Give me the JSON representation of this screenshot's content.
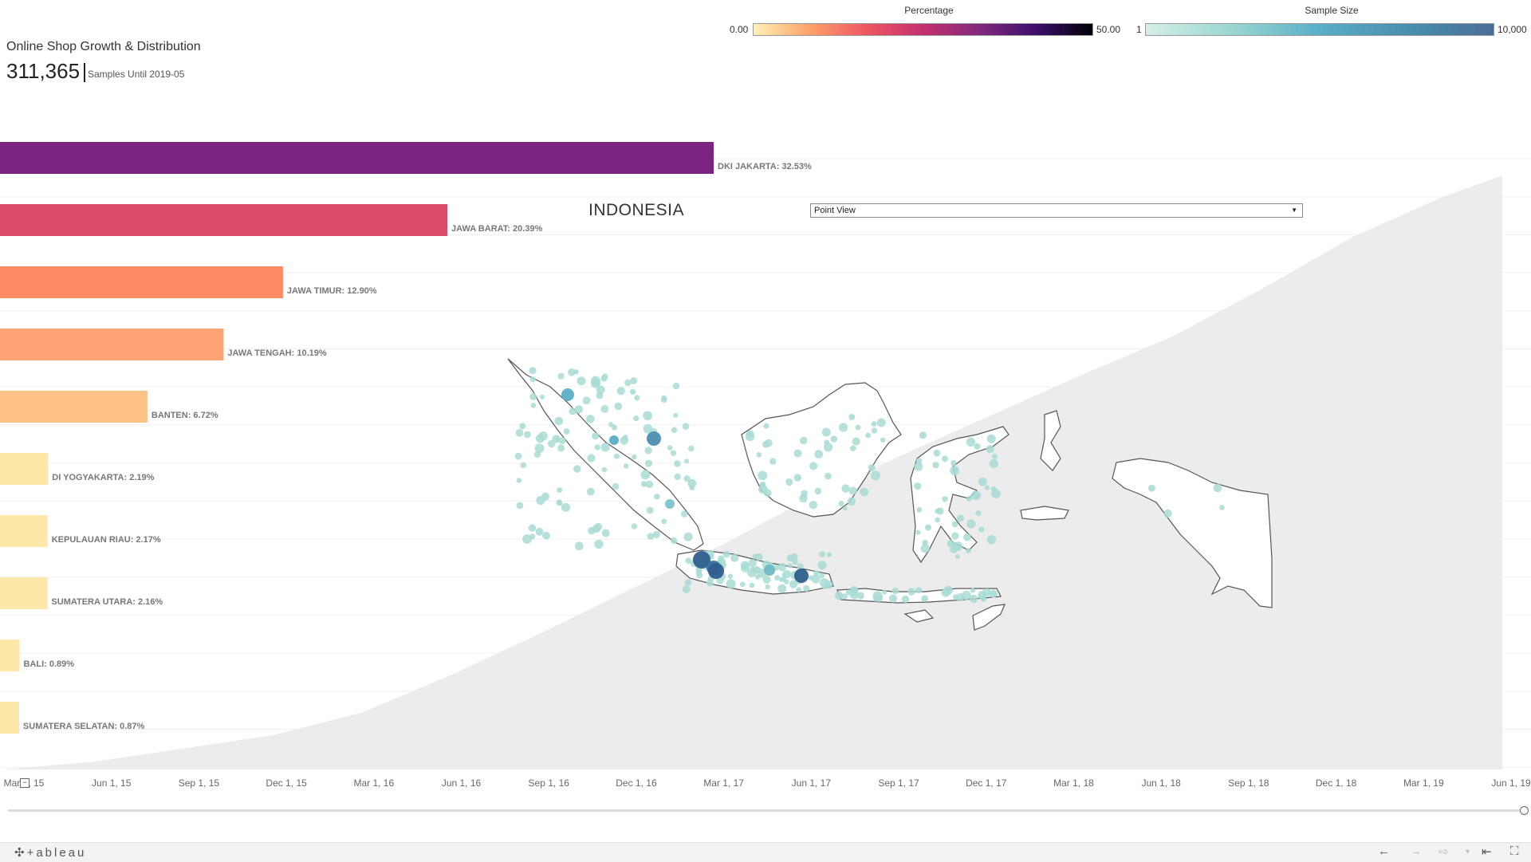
{
  "header": {
    "title": "Online Shop Growth & Distribution",
    "total": "311,365",
    "subtitle": "Samples Until 2019-05"
  },
  "legend_percentage": {
    "title": "Percentage",
    "min": "0.00",
    "max": "50.00"
  },
  "legend_sample_size": {
    "title": "Sample Size",
    "min": "1",
    "max": "10,000"
  },
  "map": {
    "title": "INDONESIA",
    "view_select": "Point View"
  },
  "colors": {
    "bar_top": "#7b2381",
    "bar_2": "#dc4a6b",
    "bar_3": "#fd8a62",
    "bar_4": "#fea474",
    "bar_5": "#fec287",
    "bar_low": "#fde8aa",
    "area": "#ececec",
    "point": "#a8dcd3",
    "point_big": "#2f5e8e"
  },
  "chart_data": [
    {
      "type": "bar",
      "orientation": "horizontal",
      "categories": [
        "DKI JAKARTA",
        "JAWA BARAT",
        "JAWA TIMUR",
        "JAWA TENGAH",
        "BANTEN",
        "DI YOGYAKARTA",
        "KEPULAUAN RIAU",
        "SUMATERA UTARA",
        "BALI",
        "SUMATERA SELATAN"
      ],
      "values": [
        32.53,
        20.39,
        12.9,
        10.19,
        6.72,
        2.19,
        2.17,
        2.16,
        0.89,
        0.87
      ],
      "labels": [
        "DKI JAKARTA: 32.53%",
        "JAWA BARAT: 20.39%",
        "JAWA TIMUR: 12.90%",
        "JAWA TENGAH: 10.19%",
        "BANTEN: 6.72%",
        "DI YOGYAKARTA: 2.19%",
        "KEPULAUAN RIAU: 2.17%",
        "SUMATERA UTARA: 2.16%",
        "BALI: 0.89%",
        "SUMATERA SELATAN: 0.87%"
      ],
      "color_scale": [
        0,
        50
      ]
    },
    {
      "type": "area",
      "x_ticks": [
        "Mar 1, 15",
        "Jun 1, 15",
        "Sep 1, 15",
        "Dec 1, 15",
        "Mar 1, 16",
        "Jun 1, 16",
        "Sep 1, 16",
        "Dec 1, 16",
        "Mar 1, 17",
        "Jun 1, 17",
        "Sep 1, 17",
        "Dec 1, 17",
        "Mar 1, 18",
        "Jun 1, 18",
        "Sep 1, 18",
        "Dec 1, 18",
        "Mar 1, 19",
        "Jun 1, 19"
      ],
      "x": [
        "2015-03",
        "2015-06",
        "2015-09",
        "2015-12",
        "2016-03",
        "2016-06",
        "2016-09",
        "2016-12",
        "2017-03",
        "2017-06",
        "2017-09",
        "2017-12",
        "2018-03",
        "2018-06",
        "2018-09",
        "2018-12",
        "2019-03",
        "2019-05"
      ],
      "values": [
        0,
        4000,
        11000,
        18000,
        30000,
        50000,
        72000,
        95000,
        118000,
        143000,
        165000,
        186000,
        207000,
        227000,
        252000,
        279000,
        300000,
        311365
      ],
      "ylim": [
        0,
        311365
      ],
      "grid": true
    }
  ]
}
